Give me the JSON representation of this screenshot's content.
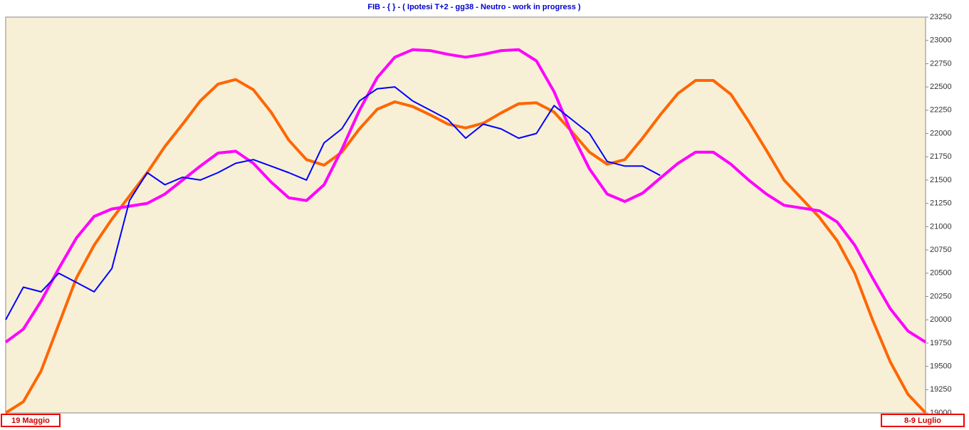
{
  "chart_data": {
    "type": "line",
    "title": "FIB  -  { } - ( Ipotesi T+2 - gg38 - Neutro - work in progress )",
    "annotations": [
      "19 Maggio",
      "8-9 Luglio"
    ],
    "ylim": [
      19000,
      23250
    ],
    "yticks": [
      19000,
      19250,
      19500,
      19750,
      20000,
      20250,
      20500,
      20750,
      21000,
      21250,
      21500,
      21750,
      22000,
      22250,
      22500,
      22750,
      23000,
      23250
    ],
    "series": [
      {
        "color": "#ff6600",
        "values": [
          19000,
          19120,
          19450,
          19950,
          20450,
          20800,
          21080,
          21330,
          21580,
          21860,
          22100,
          22350,
          22530,
          22580,
          22470,
          22230,
          21930,
          21720,
          21660,
          21800,
          22050,
          22260,
          22340,
          22290,
          22200,
          22100,
          22060,
          22110,
          22220,
          22320,
          22330,
          22230,
          22020,
          21800,
          21670,
          21720,
          21950,
          22200,
          22430,
          22570,
          22570,
          22420,
          22130,
          21820,
          21500,
          21300,
          21100,
          20850,
          20500,
          20000,
          19550,
          19200,
          19000
        ]
      },
      {
        "color": "#ff00ff",
        "values": [
          19760,
          19900,
          20200,
          20550,
          20880,
          21110,
          21190,
          21220,
          21250,
          21350,
          21500,
          21650,
          21790,
          21810,
          21680,
          21480,
          21310,
          21280,
          21450,
          21830,
          22250,
          22600,
          22820,
          22900,
          22890,
          22850,
          22820,
          22850,
          22890,
          22900,
          22780,
          22450,
          22000,
          21620,
          21350,
          21270,
          21360,
          21520,
          21680,
          21800,
          21800,
          21670,
          21500,
          21350,
          21230,
          21200,
          21170,
          21050,
          20800,
          20450,
          20120,
          19880,
          19760
        ]
      },
      {
        "color": "#0000ff",
        "values": [
          20000,
          20350,
          20300,
          20500,
          20400,
          20300,
          20550,
          21280,
          21580,
          21450,
          21530,
          21500,
          21580,
          21680,
          21720,
          21650,
          21580,
          21500,
          21900,
          22050,
          22350,
          22480,
          22500,
          22350,
          22250,
          22150,
          21950,
          22100,
          22050,
          21950,
          22000,
          22300,
          22150,
          22000,
          21700,
          21650,
          21650,
          21550,
          null,
          null,
          null,
          null,
          null,
          null,
          null,
          null,
          null,
          null,
          null,
          null,
          null,
          null,
          null
        ]
      }
    ]
  }
}
